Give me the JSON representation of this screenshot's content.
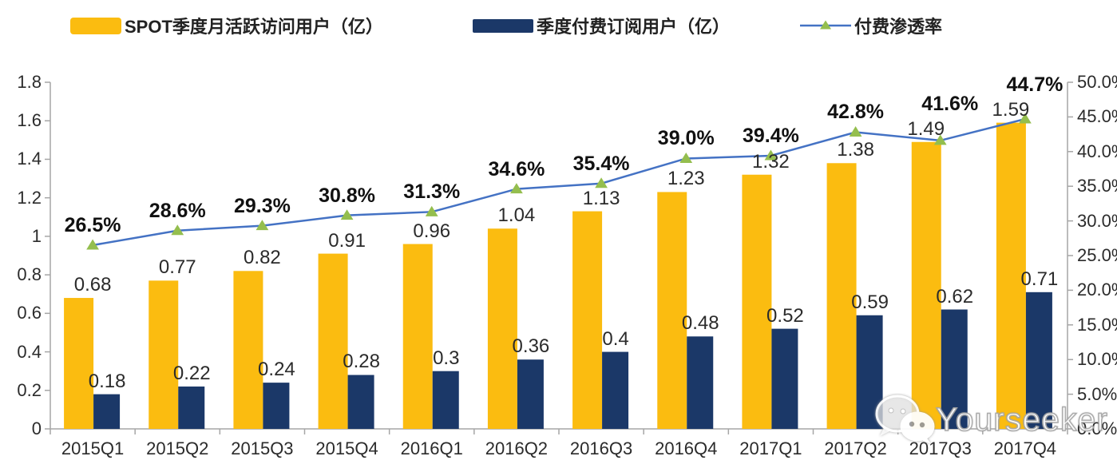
{
  "legend": [
    {
      "label": "SPOT季度月活跃访问用户（亿）",
      "type": "bar",
      "color": "#FBBC10"
    },
    {
      "label": "季度付费订阅用户（亿）",
      "type": "bar",
      "color": "#1B3868"
    },
    {
      "label": "付费渗透率",
      "type": "line",
      "color": "#4472C4",
      "marker_color": "#94BE4E"
    }
  ],
  "chart_data": {
    "type": "combo-bar-line",
    "categories": [
      "2015Q1",
      "2015Q2",
      "2015Q3",
      "2015Q4",
      "2016Q1",
      "2016Q2",
      "2016Q3",
      "2016Q4",
      "2017Q1",
      "2017Q2",
      "2017Q3",
      "2017Q4"
    ],
    "series": [
      {
        "name": "SPOT季度月活跃访问用户（亿）",
        "type": "bar",
        "axis": "left",
        "color": "#FBBC10",
        "values": [
          0.68,
          0.77,
          0.82,
          0.91,
          0.96,
          1.04,
          1.13,
          1.23,
          1.32,
          1.38,
          1.49,
          1.59
        ],
        "labels": [
          "0.68",
          "0.77",
          "0.82",
          "0.91",
          "0.96",
          "1.04",
          "1.13",
          "1.23",
          "1.32",
          "1.38",
          "1.49",
          "1.59"
        ]
      },
      {
        "name": "季度付费订阅用户（亿）",
        "type": "bar",
        "axis": "left",
        "color": "#1B3868",
        "values": [
          0.18,
          0.22,
          0.24,
          0.28,
          0.3,
          0.36,
          0.4,
          0.48,
          0.52,
          0.59,
          0.62,
          0.71
        ],
        "labels": [
          "0.18",
          "0.22",
          "0.24",
          "0.28",
          "0.3",
          "0.36",
          "0.4",
          "0.48",
          "0.52",
          "0.59",
          "0.62",
          "0.71"
        ]
      },
      {
        "name": "付费渗透率",
        "type": "line",
        "axis": "right",
        "color": "#4472C4",
        "marker": "triangle",
        "marker_color": "#94BE4E",
        "values": [
          26.5,
          28.6,
          29.3,
          30.8,
          31.3,
          34.6,
          35.4,
          39.0,
          39.4,
          42.8,
          41.6,
          44.7
        ],
        "labels": [
          "26.5%",
          "28.6%",
          "29.3%",
          "30.8%",
          "31.3%",
          "34.6%",
          "35.4%",
          "39.0%",
          "39.4%",
          "42.8%",
          "41.6%",
          "44.7%"
        ]
      }
    ],
    "left_axis": {
      "min": 0,
      "max": 1.8,
      "tick_labels": [
        "1.8",
        "1.6",
        "1.4",
        "1.2",
        "1",
        "0.8",
        "0.6",
        "0.4",
        "0.2",
        "0"
      ]
    },
    "right_axis": {
      "min": 0,
      "max": 50,
      "tick_labels": [
        "50.0%",
        "45.0%",
        "40.0%",
        "35.0%",
        "30.0%",
        "25.0%",
        "20.0%",
        "15.0%",
        "10.0%",
        "5.0%",
        "0.0%"
      ]
    },
    "grid": false,
    "legend_position": "top",
    "axis_color": "#A6A6A6",
    "label_color": "#2B2B2B"
  },
  "watermark": {
    "text": "Yourseeker",
    "icon": "wechat-chat-bubbles-icon"
  }
}
